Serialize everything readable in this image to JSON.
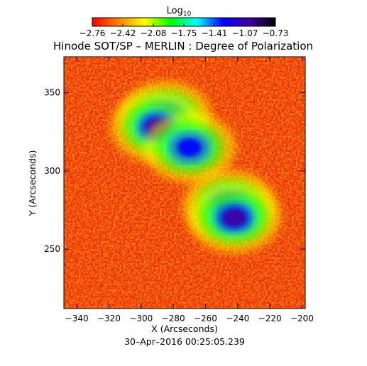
{
  "chart_data": {
    "type": "heatmap",
    "title": "Hinode SOT/SP – MERLIN : Degree of Polarization",
    "xlabel": "X (Arcseconds)",
    "ylabel": "Y (Arcseconds)",
    "timestamp": "30–Apr–2016 00:25:05.239",
    "xlim": [
      -348,
      -198
    ],
    "ylim": [
      212,
      373
    ],
    "x_ticks": [
      -340,
      -320,
      -300,
      -280,
      -260,
      -240,
      -220,
      -200
    ],
    "y_ticks": [
      250,
      300,
      350
    ],
    "x_tick_labels": [
      "−340",
      "−320",
      "−300",
      "−280",
      "−260",
      "−240",
      "−220",
      "−200"
    ],
    "y_tick_labels": [
      "250",
      "300",
      "350"
    ],
    "colorbar": {
      "title_base": "Log",
      "title_sub": "10",
      "range": [
        -2.76,
        -0.73
      ],
      "tick_labels": [
        "−2.76",
        "−2.42",
        "−2.08",
        "−1.75",
        "−1.41",
        "−1.07",
        "−0.73"
      ],
      "colors": [
        "#ff0000",
        "#ff8000",
        "#ffff00",
        "#00ff00",
        "#00ffff",
        "#0000ff",
        "#4000a0",
        "#000000"
      ]
    },
    "features": [
      {
        "x": -285,
        "y": 335,
        "value": -0.95
      },
      {
        "x": -290,
        "y": 328,
        "value": -1.1
      },
      {
        "x": -270,
        "y": 315,
        "value": -1.2
      },
      {
        "x": -245,
        "y": 278,
        "value": -0.85
      },
      {
        "x": -242,
        "y": 270,
        "value": -0.9
      }
    ],
    "background_value": -2.7
  }
}
